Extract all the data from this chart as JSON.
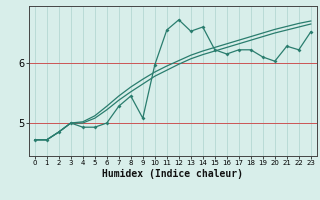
{
  "xlabel": "Humidex (Indice chaleur)",
  "x_values": [
    0,
    1,
    2,
    3,
    4,
    5,
    6,
    7,
    8,
    9,
    10,
    11,
    12,
    13,
    14,
    15,
    16,
    17,
    18,
    19,
    20,
    21,
    22,
    23
  ],
  "line1_y": [
    4.72,
    4.72,
    4.85,
    5.0,
    4.93,
    4.93,
    5.0,
    5.28,
    5.45,
    5.08,
    5.97,
    6.55,
    6.72,
    6.53,
    6.6,
    6.22,
    6.15,
    6.22,
    6.22,
    6.1,
    6.03,
    6.28,
    6.22,
    6.52
  ],
  "line2_y": [
    4.72,
    4.72,
    4.85,
    5.0,
    5.0,
    5.08,
    5.22,
    5.38,
    5.52,
    5.65,
    5.78,
    5.88,
    5.98,
    6.07,
    6.14,
    6.2,
    6.26,
    6.32,
    6.38,
    6.44,
    6.5,
    6.55,
    6.6,
    6.65
  ],
  "line3_y": [
    4.72,
    4.72,
    4.85,
    5.0,
    5.02,
    5.12,
    5.28,
    5.45,
    5.6,
    5.73,
    5.85,
    5.95,
    6.04,
    6.13,
    6.2,
    6.26,
    6.32,
    6.38,
    6.44,
    6.5,
    6.56,
    6.61,
    6.66,
    6.7
  ],
  "line_color": "#2a7d6e",
  "bg_color": "#d8eeea",
  "grid_color": "#b5d8d3",
  "red_line_color": "#cc5555",
  "ylim": [
    4.45,
    6.95
  ],
  "xlim": [
    -0.5,
    23.5
  ],
  "yticks": [
    5,
    6
  ],
  "xticks": [
    0,
    1,
    2,
    3,
    4,
    5,
    6,
    7,
    8,
    9,
    10,
    11,
    12,
    13,
    14,
    15,
    16,
    17,
    18,
    19,
    20,
    21,
    22,
    23
  ]
}
